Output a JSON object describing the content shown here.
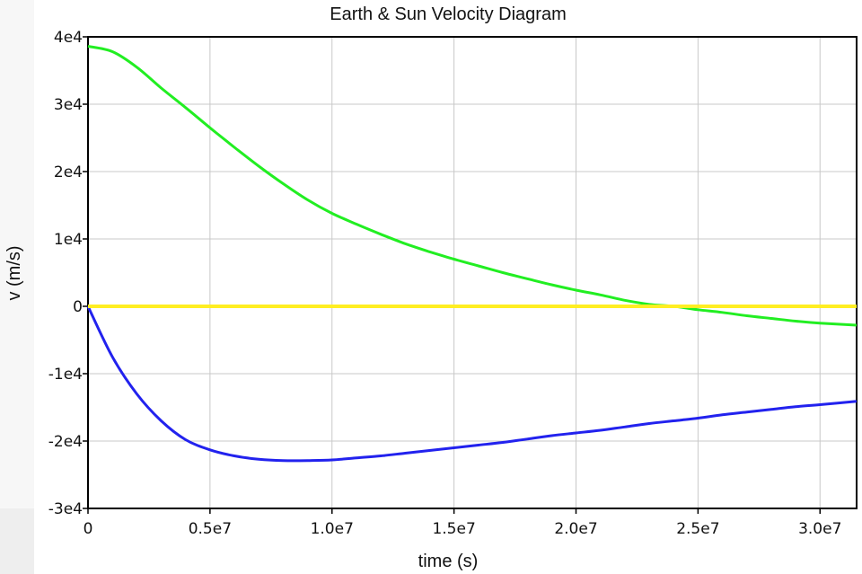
{
  "chart_data": {
    "type": "line",
    "title": "Earth & Sun Velocity Diagram",
    "xlabel": "time (s)",
    "ylabel": "v (m/s)",
    "xlim": [
      0,
      31500000
    ],
    "ylim": [
      -30000,
      40000
    ],
    "x_ticks": [
      0,
      5000000,
      10000000,
      15000000,
      20000000,
      25000000,
      30000000
    ],
    "x_tick_labels": [
      "0",
      "0.5e7",
      "1.0e7",
      "1.5e7",
      "2.0e7",
      "2.5e7",
      "3.0e7"
    ],
    "y_ticks": [
      40000,
      30000,
      20000,
      10000,
      0,
      -10000,
      -20000,
      -30000
    ],
    "y_tick_labels": [
      "4e4",
      "3e4",
      "2e4",
      "1e4",
      "0",
      "-1e4",
      "-2e4",
      "-3e4"
    ],
    "grid": true,
    "series": [
      {
        "color": "#22ee22",
        "x": [
          0,
          1000000,
          2000000,
          3000000,
          4000000,
          5000000,
          6000000,
          7000000,
          8000000,
          9000000,
          10000000,
          11000000,
          12000000,
          13000000,
          14000000,
          15000000,
          16000000,
          17000000,
          18000000,
          19000000,
          20000000,
          21000000,
          22000000,
          23000000,
          24000000,
          25000000,
          26000000,
          27000000,
          28000000,
          29000000,
          30000000,
          31500000
        ],
        "values": [
          38600,
          37800,
          35500,
          32400,
          29500,
          26500,
          23600,
          20800,
          18200,
          15800,
          13800,
          12200,
          10700,
          9300,
          8100,
          7000,
          6000,
          5000,
          4100,
          3200,
          2400,
          1700,
          900,
          300,
          0,
          -500,
          -900,
          -1400,
          -1800,
          -2200,
          -2500,
          -2800
        ]
      },
      {
        "color": "#2222ee",
        "x": [
          0,
          1000000,
          2000000,
          3000000,
          4000000,
          5000000,
          6000000,
          7000000,
          8000000,
          9000000,
          10000000,
          11000000,
          12000000,
          13000000,
          14000000,
          15000000,
          16000000,
          17000000,
          18000000,
          19000000,
          20000000,
          21000000,
          22000000,
          23000000,
          24000000,
          25000000,
          26000000,
          27000000,
          28000000,
          29000000,
          30000000,
          31500000
        ],
        "values": [
          0,
          -7500,
          -13000,
          -17000,
          -19800,
          -21300,
          -22200,
          -22700,
          -22900,
          -22900,
          -22800,
          -22500,
          -22200,
          -21800,
          -21400,
          -21000,
          -20600,
          -20200,
          -19700,
          -19200,
          -18800,
          -18400,
          -17900,
          -17400,
          -17000,
          -16600,
          -16100,
          -15700,
          -15300,
          -14900,
          -14600,
          -14100
        ]
      },
      {
        "color": "#ffee22",
        "x": [
          0,
          31500000
        ],
        "values": [
          0,
          0
        ]
      }
    ]
  }
}
